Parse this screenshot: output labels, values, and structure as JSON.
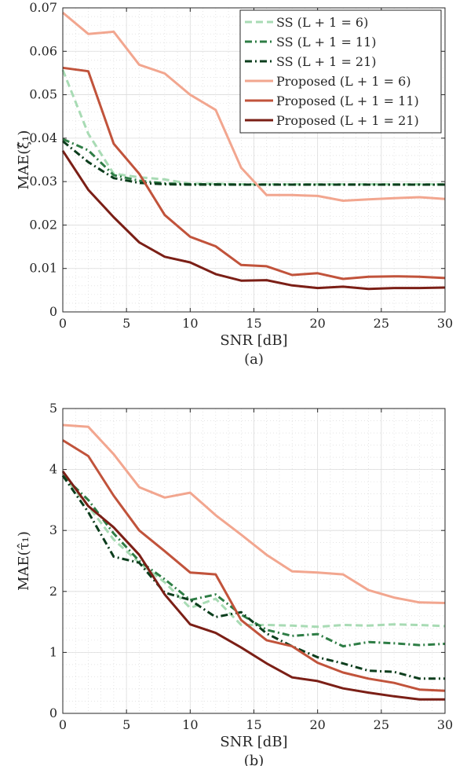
{
  "chart_data": [
    {
      "type": "line",
      "caption": "(a)",
      "xlabel": "SNR [dB]",
      "ylabel": "MAE(ξ̂₁)",
      "xlim": [
        0,
        30
      ],
      "ylim": [
        0,
        0.07
      ],
      "xticks": [
        0,
        5,
        10,
        15,
        20,
        25,
        30
      ],
      "xtick_labels": [
        "0",
        "5",
        "10",
        "15",
        "20",
        "25",
        "30"
      ],
      "yticks": [
        0,
        0.01,
        0.02,
        0.03,
        0.04,
        0.05,
        0.06,
        0.07
      ],
      "ytick_labels": [
        "0",
        "0.01",
        "0.02",
        "0.03",
        "0.04",
        "0.05",
        "0.06",
        "0.07"
      ],
      "grid": true,
      "legend_position": "top-right",
      "x": [
        0,
        2,
        4,
        6,
        8,
        10,
        12,
        14,
        16,
        18,
        20,
        22,
        24,
        26,
        28,
        30
      ],
      "series": [
        {
          "name": "SS (L + 1 = 6)",
          "color": "#a8dbb4",
          "dash": "dashed",
          "values": [
            0.0557,
            0.041,
            0.0318,
            0.031,
            0.0305,
            0.0295,
            0.0295,
            0.0294,
            0.0294,
            0.0294,
            0.0294,
            0.0294,
            0.0294,
            0.0294,
            0.0294,
            0.0294
          ]
        },
        {
          "name": "SS (L + 1 = 11)",
          "color": "#2e7d45",
          "dash": "dashdot",
          "values": [
            0.0398,
            0.0372,
            0.0315,
            0.0302,
            0.0296,
            0.0294,
            0.0294,
            0.0293,
            0.0293,
            0.0293,
            0.0293,
            0.0293,
            0.0293,
            0.0293,
            0.0293,
            0.0293
          ]
        },
        {
          "name": "SS (L + 1 = 21)",
          "color": "#0b3d1c",
          "dash": "dashdot",
          "values": [
            0.0393,
            0.0345,
            0.0308,
            0.0297,
            0.0294,
            0.0293,
            0.0293,
            0.0293,
            0.0293,
            0.0293,
            0.0293,
            0.0293,
            0.0293,
            0.0293,
            0.0293,
            0.0293
          ]
        },
        {
          "name": "Proposed (L + 1 = 6)",
          "color": "#f2a68f",
          "dash": "solid",
          "values": [
            0.0689,
            0.064,
            0.0645,
            0.0569,
            0.0549,
            0.05,
            0.0465,
            0.0332,
            0.0269,
            0.0269,
            0.0267,
            0.0256,
            0.0259,
            0.0262,
            0.0264,
            0.026
          ]
        },
        {
          "name": "Proposed (L + 1 = 11)",
          "color": "#c1533b",
          "dash": "solid",
          "values": [
            0.0562,
            0.0554,
            0.0387,
            0.0318,
            0.0223,
            0.0173,
            0.0151,
            0.0108,
            0.0105,
            0.0085,
            0.0089,
            0.0076,
            0.0081,
            0.0082,
            0.0081,
            0.0078
          ]
        },
        {
          "name": "Proposed (L + 1 = 21)",
          "color": "#7b1f16",
          "dash": "solid",
          "values": [
            0.0371,
            0.0281,
            0.0218,
            0.016,
            0.0127,
            0.0114,
            0.0087,
            0.0072,
            0.0073,
            0.0061,
            0.0055,
            0.0058,
            0.0053,
            0.0055,
            0.0055,
            0.0056
          ]
        }
      ]
    },
    {
      "type": "line",
      "caption": "(b)",
      "xlabel": "SNR [dB]",
      "ylabel": "MAE(τ̂₁)",
      "xlim": [
        0,
        30
      ],
      "ylim": [
        0,
        5
      ],
      "xticks": [
        0,
        5,
        10,
        15,
        20,
        25,
        30
      ],
      "xtick_labels": [
        "0",
        "5",
        "10",
        "15",
        "20",
        "25",
        "30"
      ],
      "yticks": [
        0,
        1,
        2,
        3,
        4,
        5
      ],
      "ytick_labels": [
        "0",
        "1",
        "2",
        "3",
        "4",
        "5"
      ],
      "grid": true,
      "x": [
        0,
        2,
        4,
        6,
        8,
        10,
        12,
        14,
        16,
        18,
        20,
        22,
        24,
        26,
        28,
        30
      ],
      "series": [
        {
          "name": "SS (L + 1 = 6)",
          "color": "#a8dbb4",
          "dash": "dashed",
          "values": [
            3.9,
            3.4,
            2.85,
            2.47,
            2.15,
            1.73,
            1.88,
            1.45,
            1.45,
            1.44,
            1.42,
            1.45,
            1.44,
            1.46,
            1.45,
            1.43
          ]
        },
        {
          "name": "SS (L + 1 = 11)",
          "color": "#2e7d45",
          "dash": "dashdot",
          "values": [
            3.9,
            3.5,
            2.95,
            2.5,
            2.2,
            1.86,
            1.95,
            1.62,
            1.37,
            1.27,
            1.3,
            1.1,
            1.17,
            1.15,
            1.12,
            1.14
          ]
        },
        {
          "name": "SS (L + 1 = 21)",
          "color": "#0b3d1c",
          "dash": "dashdot",
          "values": [
            3.9,
            3.3,
            2.57,
            2.47,
            1.98,
            1.86,
            1.58,
            1.66,
            1.31,
            1.1,
            0.92,
            0.82,
            0.7,
            0.68,
            0.57,
            0.57
          ]
        },
        {
          "name": "Proposed (L + 1 = 6)",
          "color": "#f2a68f",
          "dash": "solid",
          "values": [
            4.73,
            4.7,
            4.25,
            3.71,
            3.54,
            3.62,
            3.25,
            2.93,
            2.6,
            2.33,
            2.31,
            2.28,
            2.02,
            1.9,
            1.82,
            1.81
          ]
        },
        {
          "name": "Proposed (L + 1 = 11)",
          "color": "#c1533b",
          "dash": "solid",
          "values": [
            4.48,
            4.22,
            3.57,
            3.0,
            2.66,
            2.31,
            2.28,
            1.53,
            1.2,
            1.1,
            0.83,
            0.67,
            0.57,
            0.5,
            0.39,
            0.37
          ]
        },
        {
          "name": "Proposed (L + 1 = 21)",
          "color": "#7b1f16",
          "dash": "solid",
          "values": [
            3.97,
            3.4,
            3.05,
            2.6,
            1.95,
            1.46,
            1.32,
            1.08,
            0.82,
            0.59,
            0.53,
            0.41,
            0.34,
            0.28,
            0.23,
            0.23
          ]
        }
      ]
    }
  ]
}
